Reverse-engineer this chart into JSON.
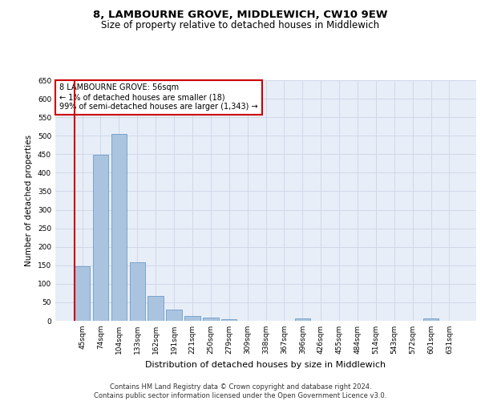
{
  "title": "8, LAMBOURNE GROVE, MIDDLEWICH, CW10 9EW",
  "subtitle": "Size of property relative to detached houses in Middlewich",
  "xlabel": "Distribution of detached houses by size in Middlewich",
  "ylabel": "Number of detached properties",
  "categories": [
    "45sqm",
    "74sqm",
    "104sqm",
    "133sqm",
    "162sqm",
    "191sqm",
    "221sqm",
    "250sqm",
    "279sqm",
    "309sqm",
    "338sqm",
    "367sqm",
    "396sqm",
    "426sqm",
    "455sqm",
    "484sqm",
    "514sqm",
    "543sqm",
    "572sqm",
    "601sqm",
    "631sqm"
  ],
  "values": [
    148,
    448,
    505,
    158,
    68,
    30,
    14,
    9,
    5,
    0,
    0,
    0,
    7,
    0,
    0,
    0,
    0,
    0,
    0,
    7,
    0
  ],
  "bar_color": "#aac4e0",
  "bar_edgecolor": "#5a8fc0",
  "highlight_color": "#cc0000",
  "annotation_text": "8 LAMBOURNE GROVE: 56sqm\n← 1% of detached houses are smaller (18)\n99% of semi-detached houses are larger (1,343) →",
  "annotation_box_edgecolor": "#cc0000",
  "annotation_box_facecolor": "#ffffff",
  "ylim": [
    0,
    650
  ],
  "yticks": [
    0,
    50,
    100,
    150,
    200,
    250,
    300,
    350,
    400,
    450,
    500,
    550,
    600,
    650
  ],
  "grid_color": "#d0d8e8",
  "background_color": "#e8eef8",
  "footer_text": "Contains HM Land Registry data © Crown copyright and database right 2024.\nContains public sector information licensed under the Open Government Licence v3.0.",
  "title_fontsize": 9.5,
  "subtitle_fontsize": 8.5,
  "xlabel_fontsize": 8,
  "ylabel_fontsize": 7.5,
  "tick_fontsize": 6.5,
  "annotation_fontsize": 7,
  "footer_fontsize": 6
}
